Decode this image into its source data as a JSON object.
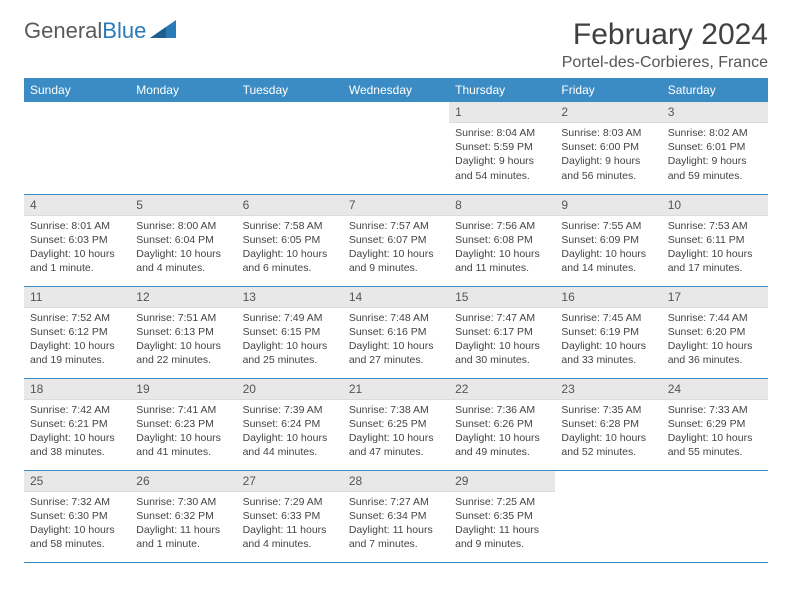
{
  "logo": {
    "part1": "General",
    "part2": "Blue"
  },
  "title": "February 2024",
  "location": "Portel-des-Corbieres, France",
  "colors": {
    "header_bg": "#3b8bc4",
    "header_text": "#ffffff",
    "daynum_bg": "#e8e8e8",
    "row_border": "#3b8bc4",
    "logo_gray": "#5a5a5a",
    "logo_blue": "#2a7ab8"
  },
  "days_of_week": [
    "Sunday",
    "Monday",
    "Tuesday",
    "Wednesday",
    "Thursday",
    "Friday",
    "Saturday"
  ],
  "weeks": [
    [
      {
        "n": "",
        "sr": "",
        "ss": "",
        "dl": ""
      },
      {
        "n": "",
        "sr": "",
        "ss": "",
        "dl": ""
      },
      {
        "n": "",
        "sr": "",
        "ss": "",
        "dl": ""
      },
      {
        "n": "",
        "sr": "",
        "ss": "",
        "dl": ""
      },
      {
        "n": "1",
        "sr": "8:04 AM",
        "ss": "5:59 PM",
        "dl": "9 hours and 54 minutes."
      },
      {
        "n": "2",
        "sr": "8:03 AM",
        "ss": "6:00 PM",
        "dl": "9 hours and 56 minutes."
      },
      {
        "n": "3",
        "sr": "8:02 AM",
        "ss": "6:01 PM",
        "dl": "9 hours and 59 minutes."
      }
    ],
    [
      {
        "n": "4",
        "sr": "8:01 AM",
        "ss": "6:03 PM",
        "dl": "10 hours and 1 minute."
      },
      {
        "n": "5",
        "sr": "8:00 AM",
        "ss": "6:04 PM",
        "dl": "10 hours and 4 minutes."
      },
      {
        "n": "6",
        "sr": "7:58 AM",
        "ss": "6:05 PM",
        "dl": "10 hours and 6 minutes."
      },
      {
        "n": "7",
        "sr": "7:57 AM",
        "ss": "6:07 PM",
        "dl": "10 hours and 9 minutes."
      },
      {
        "n": "8",
        "sr": "7:56 AM",
        "ss": "6:08 PM",
        "dl": "10 hours and 11 minutes."
      },
      {
        "n": "9",
        "sr": "7:55 AM",
        "ss": "6:09 PM",
        "dl": "10 hours and 14 minutes."
      },
      {
        "n": "10",
        "sr": "7:53 AM",
        "ss": "6:11 PM",
        "dl": "10 hours and 17 minutes."
      }
    ],
    [
      {
        "n": "11",
        "sr": "7:52 AM",
        "ss": "6:12 PM",
        "dl": "10 hours and 19 minutes."
      },
      {
        "n": "12",
        "sr": "7:51 AM",
        "ss": "6:13 PM",
        "dl": "10 hours and 22 minutes."
      },
      {
        "n": "13",
        "sr": "7:49 AM",
        "ss": "6:15 PM",
        "dl": "10 hours and 25 minutes."
      },
      {
        "n": "14",
        "sr": "7:48 AM",
        "ss": "6:16 PM",
        "dl": "10 hours and 27 minutes."
      },
      {
        "n": "15",
        "sr": "7:47 AM",
        "ss": "6:17 PM",
        "dl": "10 hours and 30 minutes."
      },
      {
        "n": "16",
        "sr": "7:45 AM",
        "ss": "6:19 PM",
        "dl": "10 hours and 33 minutes."
      },
      {
        "n": "17",
        "sr": "7:44 AM",
        "ss": "6:20 PM",
        "dl": "10 hours and 36 minutes."
      }
    ],
    [
      {
        "n": "18",
        "sr": "7:42 AM",
        "ss": "6:21 PM",
        "dl": "10 hours and 38 minutes."
      },
      {
        "n": "19",
        "sr": "7:41 AM",
        "ss": "6:23 PM",
        "dl": "10 hours and 41 minutes."
      },
      {
        "n": "20",
        "sr": "7:39 AM",
        "ss": "6:24 PM",
        "dl": "10 hours and 44 minutes."
      },
      {
        "n": "21",
        "sr": "7:38 AM",
        "ss": "6:25 PM",
        "dl": "10 hours and 47 minutes."
      },
      {
        "n": "22",
        "sr": "7:36 AM",
        "ss": "6:26 PM",
        "dl": "10 hours and 49 minutes."
      },
      {
        "n": "23",
        "sr": "7:35 AM",
        "ss": "6:28 PM",
        "dl": "10 hours and 52 minutes."
      },
      {
        "n": "24",
        "sr": "7:33 AM",
        "ss": "6:29 PM",
        "dl": "10 hours and 55 minutes."
      }
    ],
    [
      {
        "n": "25",
        "sr": "7:32 AM",
        "ss": "6:30 PM",
        "dl": "10 hours and 58 minutes."
      },
      {
        "n": "26",
        "sr": "7:30 AM",
        "ss": "6:32 PM",
        "dl": "11 hours and 1 minute."
      },
      {
        "n": "27",
        "sr": "7:29 AM",
        "ss": "6:33 PM",
        "dl": "11 hours and 4 minutes."
      },
      {
        "n": "28",
        "sr": "7:27 AM",
        "ss": "6:34 PM",
        "dl": "11 hours and 7 minutes."
      },
      {
        "n": "29",
        "sr": "7:25 AM",
        "ss": "6:35 PM",
        "dl": "11 hours and 9 minutes."
      },
      {
        "n": "",
        "sr": "",
        "ss": "",
        "dl": ""
      },
      {
        "n": "",
        "sr": "",
        "ss": "",
        "dl": ""
      }
    ]
  ],
  "labels": {
    "sunrise": "Sunrise:",
    "sunset": "Sunset:",
    "daylight": "Daylight:"
  }
}
